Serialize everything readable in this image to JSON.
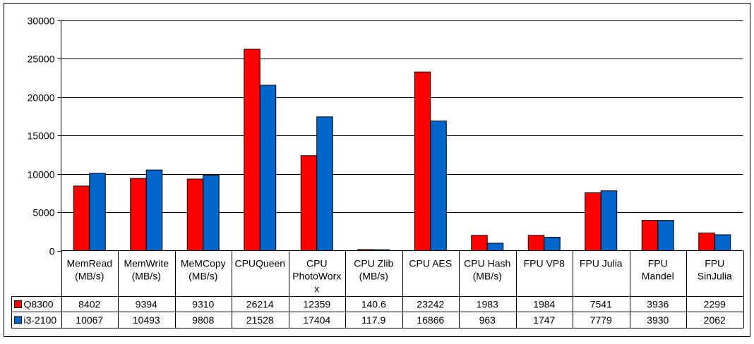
{
  "chart_data": {
    "type": "bar",
    "title": "",
    "xlabel": "",
    "ylabel": "",
    "ylim": [
      0,
      30000
    ],
    "yticks": [
      "0",
      "5000",
      "10000",
      "15000",
      "20000",
      "25000",
      "30000"
    ],
    "grid": true,
    "legend": "data-table",
    "categories": [
      [
        "MemRead",
        "(MB/s)"
      ],
      [
        "MemWrite",
        "(MB/s)"
      ],
      [
        "MeMCopy",
        "(MB/s)"
      ],
      [
        "CPUQueen"
      ],
      [
        "CPU",
        "PhotoWorx",
        "x"
      ],
      [
        "CPU Zlib",
        "(MB/s)"
      ],
      [
        "CPU AES"
      ],
      [
        "CPU Hash",
        "(MB/s)"
      ],
      [
        "FPU VP8"
      ],
      [
        "FPU Julia"
      ],
      [
        "FPU",
        "Mandel"
      ],
      [
        "FPU",
        "SinJulia"
      ]
    ],
    "series": [
      {
        "name": "Q8300",
        "color": "#ff0000",
        "values": [
          8402,
          9394,
          9310,
          26214,
          12359,
          140.6,
          23242,
          1983,
          1984,
          7541,
          3936,
          2299
        ],
        "labels": [
          "8402",
          "9394",
          "9310",
          "26214",
          "12359",
          "140.6",
          "23242",
          "1983",
          "1984",
          "7541",
          "3936",
          "2299"
        ]
      },
      {
        "name": "i3-2100",
        "color": "#0066cc",
        "values": [
          10067,
          10493,
          9808,
          21528,
          17404,
          117.9,
          16866,
          963,
          1747,
          7779,
          3930,
          2062
        ],
        "labels": [
          "10067",
          "10493",
          "9808",
          "21528",
          "17404",
          "117.9",
          "16866",
          "963",
          "1747",
          "7779",
          "3930",
          "2062"
        ]
      }
    ]
  }
}
